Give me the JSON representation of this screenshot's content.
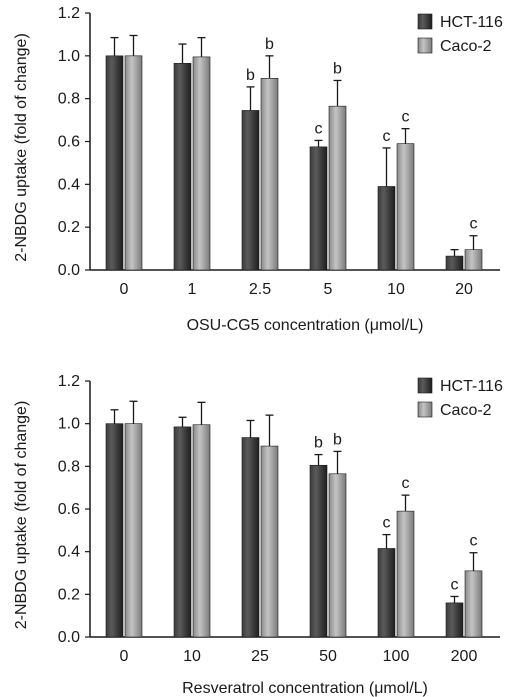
{
  "colors": {
    "hct": "#2b2b2b",
    "caco": "#9a9a9a",
    "axis": "#1a1a1a"
  },
  "chart_data": [
    {
      "type": "bar",
      "title": "",
      "xlabel": "OSU-CG5 concentration (μmol/L)",
      "ylabel": "2-NBDG uptake (fold of change)",
      "categories": [
        "0",
        "1",
        "2.5",
        "5",
        "10",
        "20"
      ],
      "ylim": [
        0,
        1.2
      ],
      "yticks": [
        "0.0",
        "0.2",
        "0.4",
        "0.6",
        "0.8",
        "1.0",
        "1.2"
      ],
      "grid": false,
      "legend_position": "top-right",
      "series": [
        {
          "name": "HCT-116",
          "values": [
            1.0,
            0.965,
            0.745,
            0.575,
            0.39,
            0.065
          ],
          "errors": [
            0.085,
            0.09,
            0.11,
            0.03,
            0.18,
            0.03
          ],
          "labels": [
            "",
            "",
            "b",
            "c",
            "c",
            ""
          ]
        },
        {
          "name": "Caco-2",
          "values": [
            1.0,
            0.995,
            0.895,
            0.765,
            0.59,
            0.095
          ],
          "errors": [
            0.095,
            0.09,
            0.105,
            0.12,
            0.07,
            0.065
          ],
          "labels": [
            "",
            "",
            "b",
            "b",
            "c",
            "c"
          ]
        }
      ]
    },
    {
      "type": "bar",
      "title": "",
      "xlabel": "Resveratrol concentration (μmol/L)",
      "ylabel": "2-NBDG uptake (fold of change)",
      "categories": [
        "0",
        "10",
        "25",
        "50",
        "100",
        "200"
      ],
      "ylim": [
        0,
        1.2
      ],
      "yticks": [
        "0.0",
        "0.2",
        "0.4",
        "0.6",
        "0.8",
        "1.0",
        "1.2"
      ],
      "grid": false,
      "legend_position": "top-right",
      "series": [
        {
          "name": "HCT-116",
          "values": [
            1.0,
            0.985,
            0.935,
            0.805,
            0.415,
            0.16
          ],
          "errors": [
            0.065,
            0.045,
            0.08,
            0.05,
            0.065,
            0.03
          ],
          "labels": [
            "",
            "",
            "",
            "b",
            "c",
            "c"
          ]
        },
        {
          "name": "Caco-2",
          "values": [
            1.0,
            0.995,
            0.895,
            0.765,
            0.59,
            0.31
          ],
          "errors": [
            0.105,
            0.105,
            0.145,
            0.105,
            0.075,
            0.085
          ],
          "labels": [
            "",
            "",
            "",
            "b",
            "c",
            "c"
          ]
        }
      ]
    }
  ]
}
